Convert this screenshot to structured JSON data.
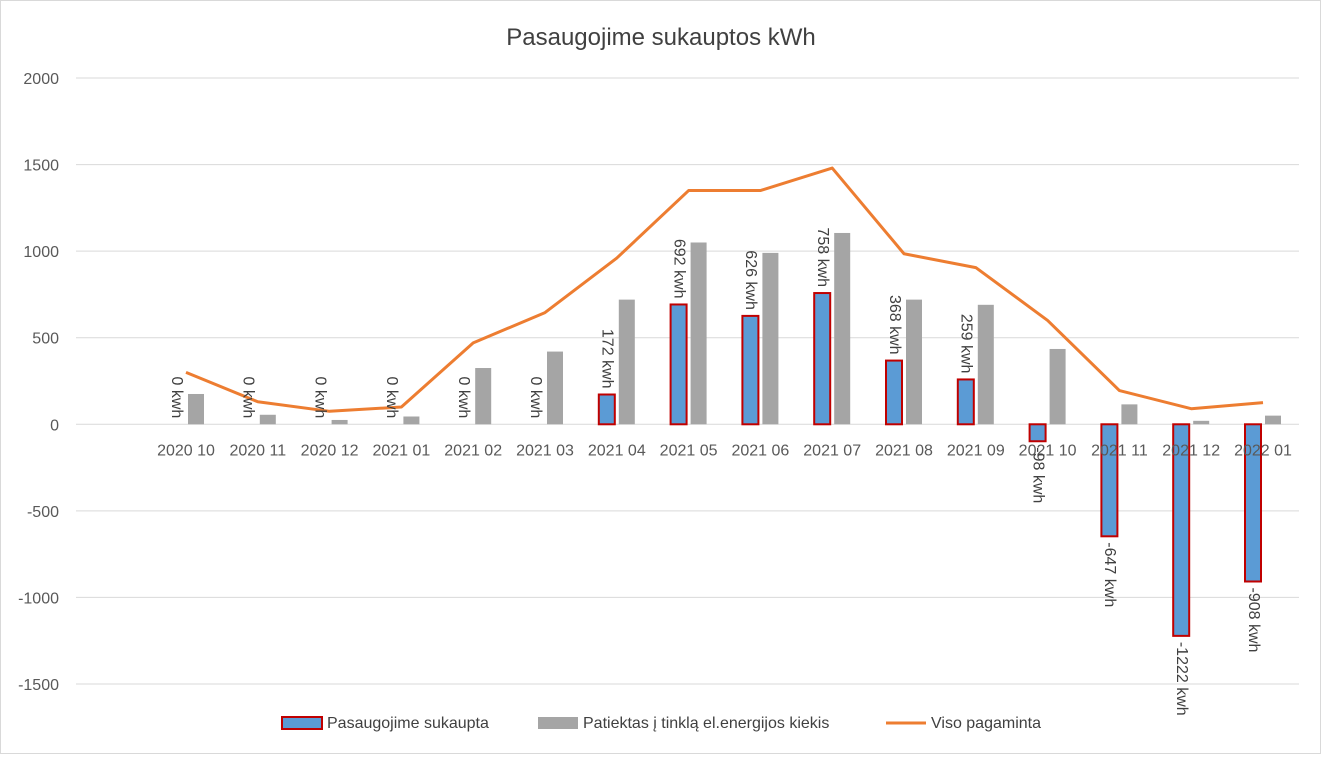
{
  "chart_data": {
    "type": "bar",
    "title": "Pasaugojime sukauptos kWh",
    "categories": [
      "2020 10",
      "2020 11",
      "2020 12",
      "2021 01",
      "2021 02",
      "2021 03",
      "2021 04",
      "2021 05",
      "2021 06",
      "2021 07",
      "2021 08",
      "2021 09",
      "2021 10",
      "2021 11",
      "2021 12",
      "2022 01"
    ],
    "ylim": [
      -1500,
      2000
    ],
    "yticks": [
      "2000",
      "1500",
      "1000",
      "500",
      "0",
      "-500",
      "-1000",
      "-1500"
    ],
    "grid": true,
    "legend_position": "bottom",
    "series": [
      {
        "name": "Pasaugojime sukaupta",
        "type": "bar",
        "color": "#5b9bd5",
        "border_color": "#c00000",
        "values": [
          0,
          0,
          0,
          0,
          0,
          0,
          172,
          692,
          626,
          758,
          368,
          259,
          -98,
          -647,
          -1222,
          -908
        ],
        "labels": [
          "0 kwh",
          "0 kwh",
          "0 kwh",
          "0 kwh",
          "0 kwh",
          "0 kwh",
          "172 kwh",
          "692 kwh",
          "626 kwh",
          "758 kwh",
          "368 kwh",
          "259 kwh",
          "-98 kwh",
          "-647 kwh",
          "-1222 kwh",
          "-908 kwh"
        ]
      },
      {
        "name": "Patiektas į tinklą el.energijos kiekis",
        "type": "bar",
        "color": "#a5a5a5",
        "values": [
          175,
          55,
          25,
          45,
          325,
          420,
          720,
          1050,
          990,
          1105,
          720,
          690,
          435,
          115,
          20,
          50
        ]
      },
      {
        "name": "Viso pagaminta",
        "type": "line",
        "color": "#ed7d31",
        "values": [
          300,
          130,
          75,
          100,
          470,
          645,
          960,
          1350,
          1350,
          1480,
          985,
          905,
          600,
          195,
          90,
          125
        ]
      }
    ]
  }
}
